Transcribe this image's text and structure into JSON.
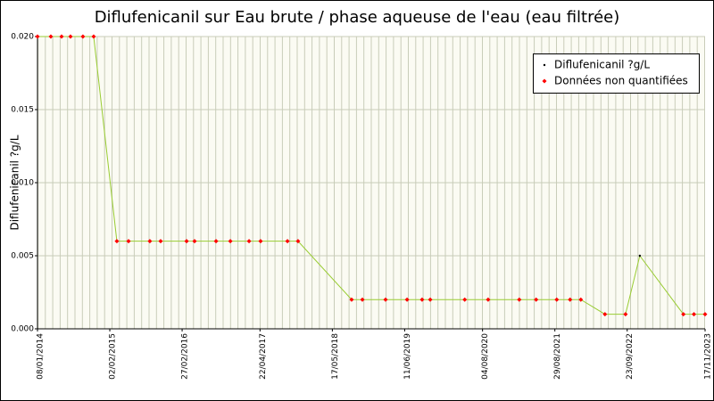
{
  "chart_data": {
    "type": "line",
    "title": "Diflufenicanil sur Eau brute / phase aqueuse de l'eau (eau filtrée)",
    "y_label": "Diflufenicanil ?g/L",
    "x": [
      "08/01/2014",
      "21/03/2014",
      "18/05/2014",
      "05/07/2014",
      "10/09/2014",
      "07/11/2014",
      "12/03/2015",
      "14/05/2015",
      "06/09/2015",
      "03/11/2015",
      "22/03/2016",
      "04/05/2016",
      "28/08/2016",
      "13/11/2016",
      "22/02/2017",
      "25/04/2017",
      "17/09/2017",
      "13/11/2017",
      "29/08/2018",
      "26/10/2018",
      "28/02/2019",
      "24/06/2019",
      "13/09/2019",
      "27/10/2019",
      "30/04/2020",
      "03/09/2020",
      "18/02/2021",
      "20/05/2021",
      "08/09/2021",
      "19/11/2021",
      "16/01/2022",
      "26/05/2022",
      "14/09/2022",
      "30/11/2022",
      "23/07/2023",
      "18/09/2023",
      "17/11/2023"
    ],
    "series": [
      {
        "name": "Diflufenicanil ?g/L",
        "color": "#99cc33",
        "marker_color": "#000000",
        "values": [
          0.02,
          0.02,
          0.02,
          0.02,
          0.02,
          0.02,
          0.006,
          0.006,
          0.006,
          0.006,
          0.006,
          0.006,
          0.006,
          0.006,
          0.006,
          0.006,
          0.006,
          0.006,
          0.002,
          0.002,
          0.002,
          0.002,
          0.002,
          0.002,
          0.002,
          0.002,
          0.002,
          0.002,
          0.002,
          0.002,
          0.002,
          0.001,
          0.001,
          0.005,
          0.001,
          0.001,
          0.001
        ]
      },
      {
        "name": "Données non quantifiées",
        "color": "#ff0000",
        "values": [
          0.02,
          0.02,
          0.02,
          0.02,
          0.02,
          0.02,
          0.006,
          0.006,
          0.006,
          0.006,
          0.006,
          0.006,
          0.006,
          0.006,
          0.006,
          0.006,
          0.006,
          0.006,
          0.002,
          0.002,
          0.002,
          0.002,
          0.002,
          0.002,
          0.002,
          0.002,
          0.002,
          0.002,
          0.002,
          0.002,
          0.002,
          0.001,
          0.001,
          null,
          0.001,
          0.001,
          0.001
        ]
      }
    ],
    "xlim": [
      "08/01/2014",
      "17/11/2023"
    ],
    "xticks": [
      "08/01/2014",
      "02/02/2015",
      "27/02/2016",
      "22/04/2017",
      "17/05/2018",
      "11/06/2019",
      "04/08/2020",
      "29/08/2021",
      "23/09/2022",
      "17/11/2023"
    ],
    "ylim": [
      0,
      0.02
    ],
    "yticks": [
      {
        "value": 0,
        "label": "0.000"
      },
      {
        "value": 0.005,
        "label": "0.005"
      },
      {
        "value": 0.01,
        "label": "0.010"
      },
      {
        "value": 0.015,
        "label": "0.015"
      },
      {
        "value": 0.02,
        "label": "0.020"
      }
    ],
    "grid": true,
    "legend": "top-right"
  }
}
